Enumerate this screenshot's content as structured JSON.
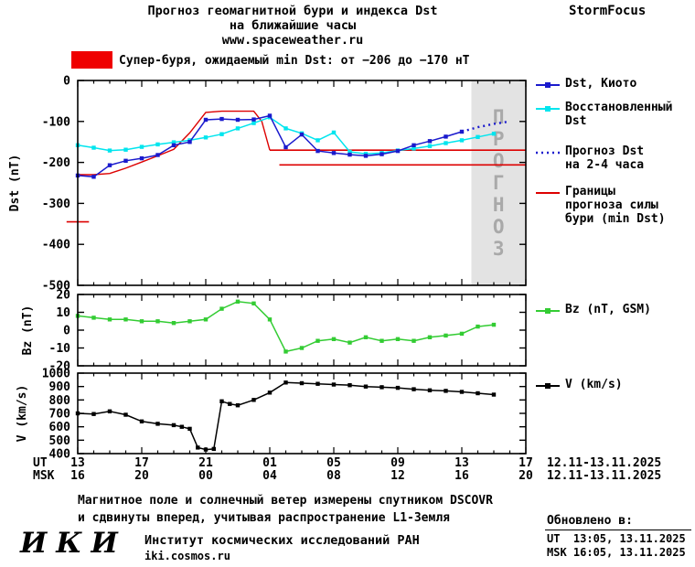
{
  "header": {
    "title_line1": "Прогноз геомагнитной бури и индекса Dst",
    "title_line2": "на ближайшие часы",
    "site": "www.spaceweather.ru",
    "brand": "StormFocus"
  },
  "alert": {
    "box_color": "#ef0000",
    "text": "Супер-буря, ожидаемый min Dst: от −206 до −170 нТ"
  },
  "legend": {
    "dst_kyoto": "Dst, Киото",
    "dst_restored": "Восстановленный\nDst",
    "dst_forecast": "Прогноз Dst\nна 2-4 часа",
    "dst_bounds": "Границы\nпрогноза силы\nбури (min Dst)",
    "bz": "Bz (nT, GSM)",
    "v": "V (km/s)"
  },
  "xaxis": {
    "ut_label": "UT",
    "msk_label": "MSK",
    "t_ticks": [
      0,
      4,
      8,
      12,
      16,
      20,
      24,
      28
    ],
    "t_max": 28,
    "ut_ticks": [
      "13",
      "17",
      "21",
      "01",
      "05",
      "09",
      "13",
      "17"
    ],
    "msk_ticks": [
      "16",
      "20",
      "00",
      "04",
      "08",
      "12",
      "16",
      "20"
    ],
    "ut_range": "12.11-13.11.2025",
    "msk_range": "12.11-13.11.2025"
  },
  "chart_data": [
    {
      "type": "line",
      "ylabel": "Dst (nT)",
      "ylim": [
        -500,
        0
      ],
      "yticks": [
        0,
        -100,
        -200,
        -300,
        -400,
        -500
      ],
      "band": {
        "x_start": 24.6,
        "x_end": 28,
        "label": "ПРОГНОЗ",
        "fill": "#e3e3e3",
        "text_color": "#a9a9a9"
      },
      "series": [
        {
          "name": "Границы прогноза силы бури (min Dst)",
          "color": "#dd0000",
          "width": 1.4,
          "x": [
            0,
            1,
            2,
            3,
            4,
            5,
            6,
            7,
            8,
            9,
            10,
            11,
            11.5,
            12
          ],
          "y": [
            -230,
            -230,
            -227,
            -214,
            -199,
            -184,
            -168,
            -128,
            -78,
            -75,
            -75,
            -75,
            -100,
            -170
          ]
        },
        {
          "name": "Граница min Dst верхняя",
          "color": "#dd0000",
          "width": 1.6,
          "x": [
            12,
            28
          ],
          "y": [
            -170,
            -170
          ]
        },
        {
          "name": "Граница min Dst нижняя",
          "color": "#dd0000",
          "width": 1.6,
          "x": [
            12.6,
            28
          ],
          "y": [
            -206,
            -206
          ]
        },
        {
          "name": "Отметка границы слева",
          "color": "#dd0000",
          "width": 1.6,
          "x": [
            -0.7,
            0.7
          ],
          "y": [
            -345,
            -345
          ]
        },
        {
          "name": "Восстановленный Dst",
          "color": "#00e5ee",
          "marker": "square",
          "width": 1.5,
          "x": [
            0,
            1,
            2,
            3,
            4,
            5,
            6,
            7,
            8,
            9,
            10,
            11,
            12,
            13,
            14,
            15,
            16,
            17,
            18,
            19,
            20,
            21,
            22,
            23,
            24,
            25,
            26
          ],
          "y": [
            -158,
            -164,
            -171,
            -169,
            -162,
            -156,
            -151,
            -146,
            -139,
            -131,
            -117,
            -104,
            -90,
            -117,
            -129,
            -146,
            -127,
            -174,
            -179,
            -177,
            -171,
            -166,
            -160,
            -153,
            -146,
            -138,
            -130
          ]
        },
        {
          "name": "Dst, Киото",
          "color": "#1a1acd",
          "marker": "square",
          "width": 1.5,
          "x": [
            0,
            1,
            2,
            3,
            4,
            5,
            6,
            7,
            8,
            9,
            10,
            11,
            12,
            13,
            14,
            15,
            16,
            17,
            18,
            19,
            20,
            21,
            22,
            23,
            24
          ],
          "y": [
            -232,
            -235,
            -207,
            -196,
            -190,
            -182,
            -158,
            -150,
            -96,
            -94,
            -96,
            -95,
            -86,
            -163,
            -132,
            -172,
            -177,
            -181,
            -184,
            -180,
            -172,
            -158,
            -148,
            -137,
            -125
          ]
        },
        {
          "name": "Прогноз Dst на 2-4 часа",
          "color": "#1a1acd",
          "dash": "2 4",
          "width": 2.4,
          "x": [
            24,
            25,
            26,
            27
          ],
          "y": [
            -125,
            -114,
            -106,
            -100
          ]
        }
      ]
    },
    {
      "type": "line",
      "ylabel": "Bz (nT)",
      "ylim": [
        -20,
        20
      ],
      "yticks": [
        20,
        10,
        0,
        -10,
        -20
      ],
      "series": [
        {
          "name": "Bz (nT, GSM)",
          "color": "#33cc33",
          "marker": "square",
          "width": 1.5,
          "x": [
            0,
            1,
            2,
            3,
            4,
            5,
            6,
            7,
            8,
            9,
            10,
            11,
            12,
            13,
            14,
            15,
            16,
            17,
            18,
            19,
            20,
            21,
            22,
            23,
            24,
            25,
            26
          ],
          "y": [
            8,
            7,
            6,
            6,
            5,
            5,
            4,
            5,
            6,
            12,
            16,
            15,
            6,
            -12,
            -10,
            -6,
            -5,
            -7,
            -4,
            -6,
            -5,
            -6,
            -4,
            -3,
            -2,
            2,
            3
          ]
        }
      ]
    },
    {
      "type": "line",
      "ylabel": "V (km/s)",
      "ylim": [
        400,
        1000
      ],
      "yticks": [
        1000,
        900,
        800,
        700,
        600,
        500,
        400
      ],
      "series": [
        {
          "name": "V (km/s)",
          "color": "#000000",
          "marker": "square",
          "width": 1.5,
          "x": [
            0,
            1,
            2,
            3,
            4,
            5,
            6,
            6.5,
            7,
            7.5,
            8,
            8.5,
            9,
            9.5,
            10,
            11,
            12,
            13,
            14,
            15,
            16,
            17,
            18,
            19,
            20,
            21,
            22,
            23,
            24,
            25,
            26
          ],
          "y": [
            700,
            695,
            715,
            690,
            640,
            622,
            612,
            600,
            585,
            445,
            430,
            435,
            790,
            770,
            760,
            800,
            855,
            930,
            925,
            920,
            915,
            910,
            900,
            895,
            890,
            880,
            872,
            868,
            860,
            850,
            840
          ]
        }
      ]
    }
  ],
  "footer": {
    "note_line1": "Магнитное поле и солнечный ветер измерены спутником DSCOVR",
    "note_line2": "и сдвинуты вперед, учитывая распространение L1-Земля",
    "logo": "ИКИ",
    "institute": "Институт космических исследований РАН",
    "institute_site": "iki.cosmos.ru",
    "updated_label": "Обновлено в:",
    "updated_ut": "UT  13:05, 13.11.2025",
    "updated_msk": "MSK 16:05, 13.11.2025"
  }
}
